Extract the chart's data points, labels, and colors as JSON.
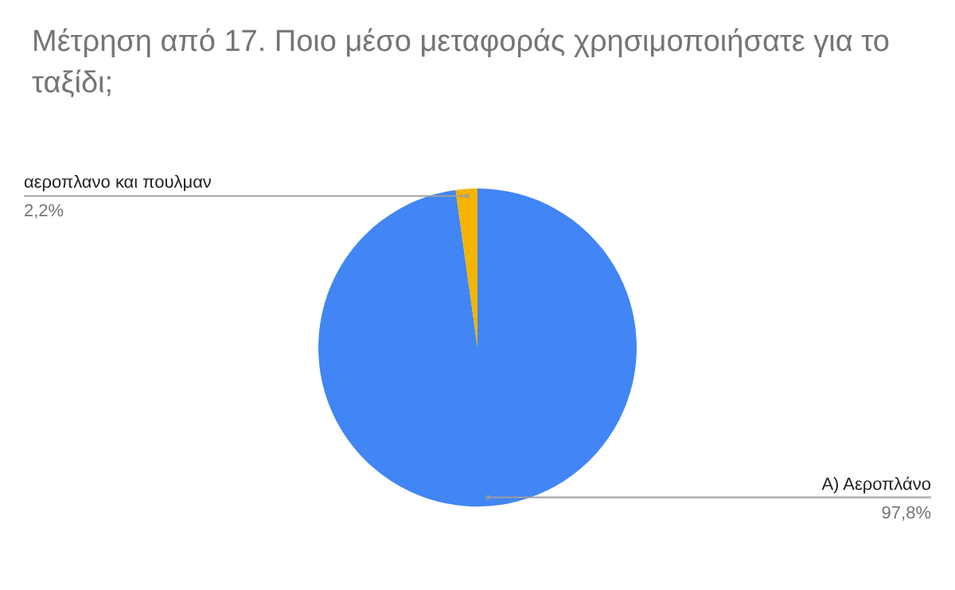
{
  "chart_data": {
    "type": "pie",
    "title": "Μέτρηση από  17. Ποιο μέσο μεταφοράς χρησιμοποιήσατε για το ταξίδι;",
    "categories": [
      "Α) Αεροπλάνο",
      "αεροπλανο και πουλμαν"
    ],
    "values": [
      97.8,
      2.2
    ],
    "colors": [
      "#4285f4",
      "#f4b400"
    ],
    "value_labels": [
      "97,8%",
      "2,2%"
    ]
  }
}
